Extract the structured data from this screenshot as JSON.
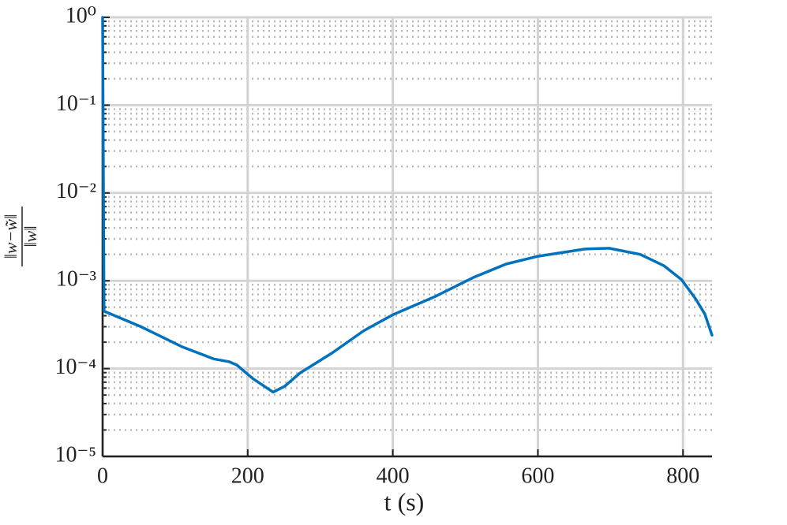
{
  "chart_data": {
    "type": "line",
    "x_label": "t (s)",
    "y_label_numerator": "‖w−w̃‖",
    "y_label_denominator": "‖w‖",
    "series": [
      {
        "color": "#0072bd",
        "x": [
          0,
          2,
          54,
          109,
          153,
          174,
          185,
          207,
          235,
          251,
          272,
          316,
          360,
          400,
          458,
          512,
          556,
          600,
          665,
          698,
          741,
          774,
          798,
          817,
          830,
          840
        ],
        "values": [
          1,
          0.00045,
          0.000297,
          0.000178,
          0.000129,
          0.00012,
          0.00011,
          7.7e-05,
          5.4e-05,
          6.3e-05,
          8.9e-05,
          0.00015,
          0.00027,
          0.00041,
          0.00066,
          0.0011,
          0.00155,
          0.0019,
          0.0023,
          0.00235,
          0.002,
          0.00148,
          0.00103,
          0.00063,
          0.00042,
          0.00024
        ]
      }
    ],
    "xlim": [
      0,
      840
    ],
    "xticks": [
      0,
      200,
      400,
      600,
      800
    ],
    "ylim": [
      1e-05,
      1
    ],
    "yticks": [
      {
        "value": 1e-05,
        "label": "10⁻⁵"
      },
      {
        "value": 0.0001,
        "label": "10⁻⁴"
      },
      {
        "value": 0.001,
        "label": "10⁻³"
      },
      {
        "value": 0.01,
        "label": "10⁻²"
      },
      {
        "value": 0.1,
        "label": "10⁻¹"
      },
      {
        "value": 1,
        "label": "10⁰"
      }
    ],
    "log_y": true,
    "grid": true,
    "minor_grid": true
  }
}
